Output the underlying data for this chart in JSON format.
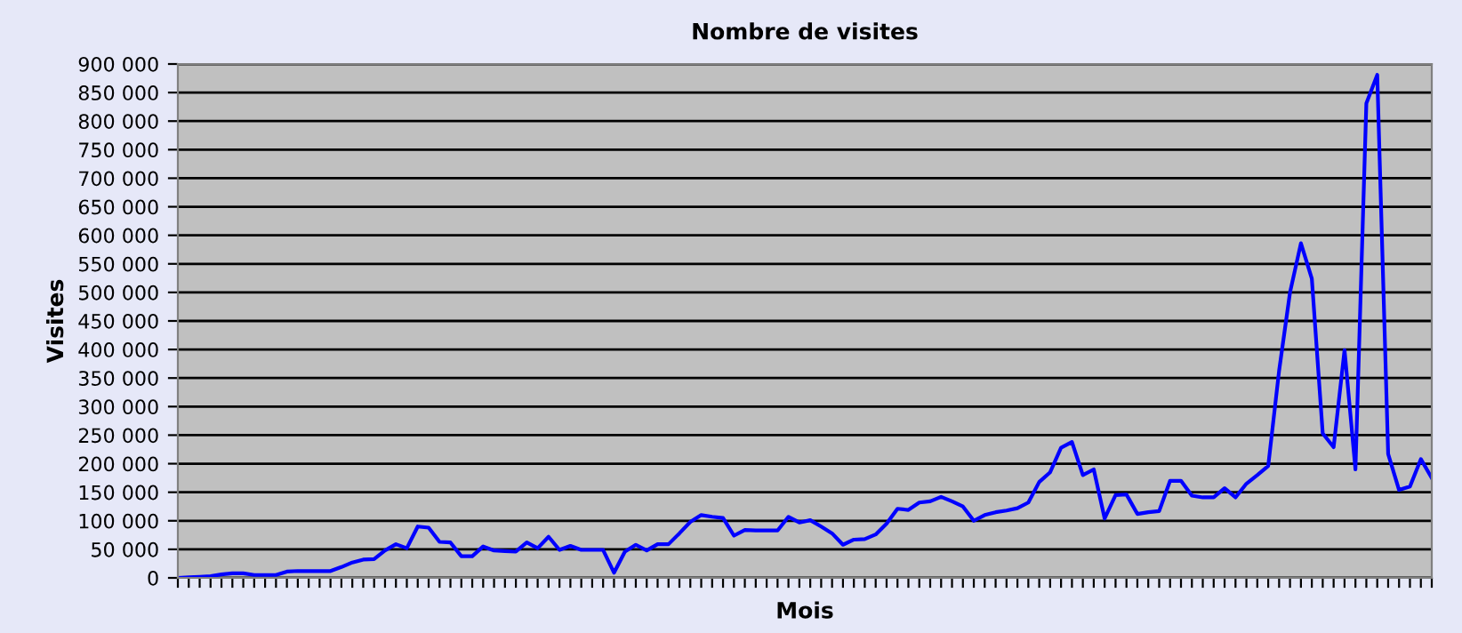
{
  "chart_data": {
    "type": "line",
    "title": "Nombre de visites",
    "xlabel": "Mois",
    "ylabel": "Visites",
    "categories": [
      null,
      null,
      null,
      null,
      null,
      null,
      null,
      null,
      null,
      null,
      null,
      null,
      null,
      null,
      null,
      null,
      null,
      null,
      null,
      null,
      null,
      null,
      null,
      null,
      null,
      null,
      null,
      null,
      null,
      null,
      null,
      null,
      null,
      null,
      null,
      null,
      null,
      null,
      null,
      null,
      null,
      null,
      null,
      null,
      null,
      null,
      null,
      null,
      null,
      null,
      null,
      null,
      null,
      null,
      null,
      null,
      null,
      null,
      null,
      null,
      null,
      null,
      null,
      null,
      null,
      null,
      null,
      null,
      null,
      null,
      null,
      null,
      null,
      null,
      null,
      null,
      null,
      null,
      null,
      null,
      null,
      null,
      null,
      null,
      null,
      null,
      null,
      null,
      null,
      null,
      null,
      null,
      null,
      null,
      null,
      null,
      null,
      null,
      null,
      null,
      null,
      null,
      null,
      null,
      null,
      null,
      null,
      null,
      null,
      null,
      null,
      null,
      null,
      null,
      null,
      null
    ],
    "series": [
      {
        "color": "#0000ff",
        "values": [
          0,
          1000,
          2000,
          3000,
          6000,
          8000,
          8000,
          5000,
          5000,
          5000,
          11000,
          12000,
          12000,
          12000,
          12000,
          19000,
          27000,
          32000,
          33000,
          48000,
          59000,
          52000,
          90000,
          88000,
          63000,
          62000,
          38000,
          38000,
          55000,
          48000,
          47000,
          46000,
          62000,
          52000,
          72000,
          49000,
          56000,
          49000,
          49000,
          49000,
          9000,
          46000,
          58000,
          48000,
          59000,
          59000,
          78000,
          98000,
          110000,
          107000,
          105000,
          74000,
          84000,
          83000,
          83000,
          83000,
          107000,
          97000,
          101000,
          90000,
          78000,
          58000,
          67000,
          68000,
          76000,
          95000,
          121000,
          119000,
          132000,
          134000,
          142000,
          134000,
          125000,
          100000,
          110000,
          115000,
          118000,
          122000,
          132000,
          168000,
          185000,
          228000,
          238000,
          180000,
          190000,
          104000,
          145000,
          146000,
          112000,
          115000,
          117000,
          170000,
          170000,
          144000,
          141000,
          141000,
          157000,
          141000,
          165000,
          180000,
          196000,
          363000,
          500000,
          586000,
          524000,
          253000,
          229000,
          399000,
          190000,
          831000,
          881000,
          217000,
          154000,
          160000,
          208000,
          175000
        ]
      }
    ],
    "ylim": [
      0,
      900000
    ],
    "yticks": [
      {
        "value": 0,
        "label": "0"
      },
      {
        "value": 50000,
        "label": "50 000"
      },
      {
        "value": 100000,
        "label": "100 000"
      },
      {
        "value": 150000,
        "label": "150 000"
      },
      {
        "value": 200000,
        "label": "200 000"
      },
      {
        "value": 250000,
        "label": "250 000"
      },
      {
        "value": 300000,
        "label": "300 000"
      },
      {
        "value": 350000,
        "label": "350 000"
      },
      {
        "value": 400000,
        "label": "400 000"
      },
      {
        "value": 450000,
        "label": "450 000"
      },
      {
        "value": 500000,
        "label": "500 000"
      },
      {
        "value": 550000,
        "label": "550 000"
      },
      {
        "value": 600000,
        "label": "600 000"
      },
      {
        "value": 650000,
        "label": "650 000"
      },
      {
        "value": 700000,
        "label": "700 000"
      },
      {
        "value": 750000,
        "label": "750 000"
      },
      {
        "value": 800000,
        "label": "800 000"
      },
      {
        "value": 850000,
        "label": "850 000"
      },
      {
        "value": 900000,
        "label": "900 000"
      }
    ],
    "grid": "y",
    "marker": "none",
    "line_style": "solid"
  }
}
